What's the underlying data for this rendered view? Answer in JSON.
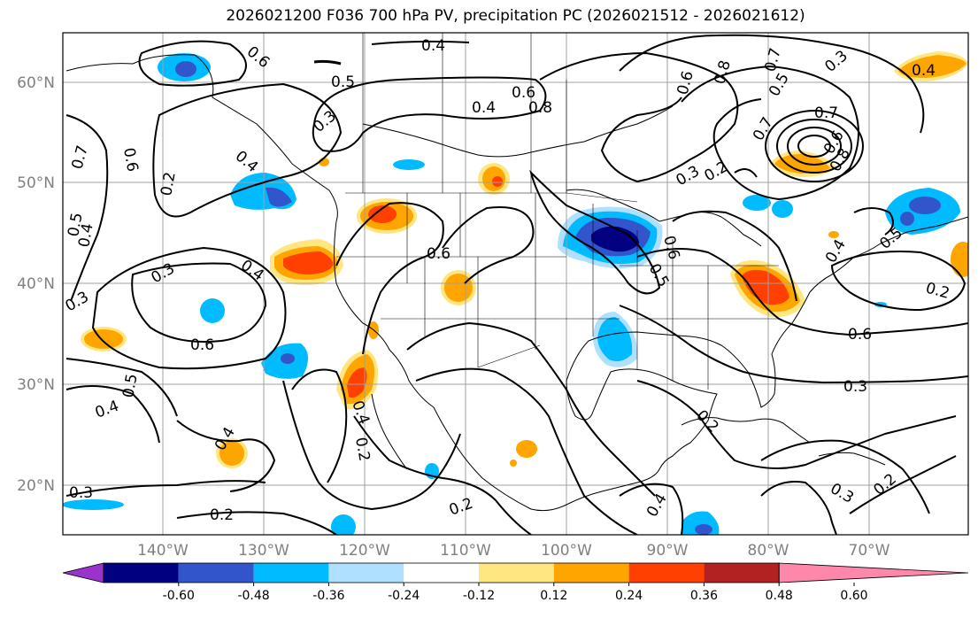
{
  "title": "2026021200 F036 700 hPa PV, precipitation PC (2026021512 - 2026021612)",
  "map": {
    "lat_labels": [
      "60°N",
      "50°N",
      "40°N",
      "30°N",
      "20°N"
    ],
    "lon_labels": [
      "140°W",
      "130°W",
      "120°W",
      "110°W",
      "100°W",
      "90°W",
      "80°W",
      "70°W"
    ],
    "contour_labels": [
      "0.6",
      "0.4",
      "0.5",
      "0.6",
      "0.4",
      "0.8",
      "0.7",
      "0.6",
      "0.4",
      "0.3",
      "0.2",
      "0.6",
      "0.8",
      "0.7",
      "0.5",
      "0.3",
      "0.7",
      "0.8",
      "0.7",
      "0.6",
      "0.4",
      "0.3",
      "0.2",
      "0.5",
      "0.4",
      "0.6",
      "0.6",
      "0.5",
      "0.3",
      "0.4",
      "0.3",
      "0.2",
      "0.4",
      "0.5",
      "0.6",
      "0.6",
      "0.5",
      "0.4",
      "0.3",
      "0.4",
      "0.2",
      "0.2",
      "0.4",
      "0.3",
      "0.2",
      "0.2",
      "0.3",
      "0.4",
      "0.2"
    ]
  },
  "colorbar": {
    "ticks": [
      "-0.60",
      "-0.48",
      "-0.36",
      "-0.24",
      "-0.12",
      "0.12",
      "0.24",
      "0.36",
      "0.48",
      "0.60"
    ],
    "colors": [
      "#9933cc",
      "#000080",
      "#3355cc",
      "#00bbff",
      "#b0e0ff",
      "#ffffff",
      "#ffe680",
      "#ffa500",
      "#ff4000",
      "#b22222",
      "#ff88aa"
    ]
  }
}
